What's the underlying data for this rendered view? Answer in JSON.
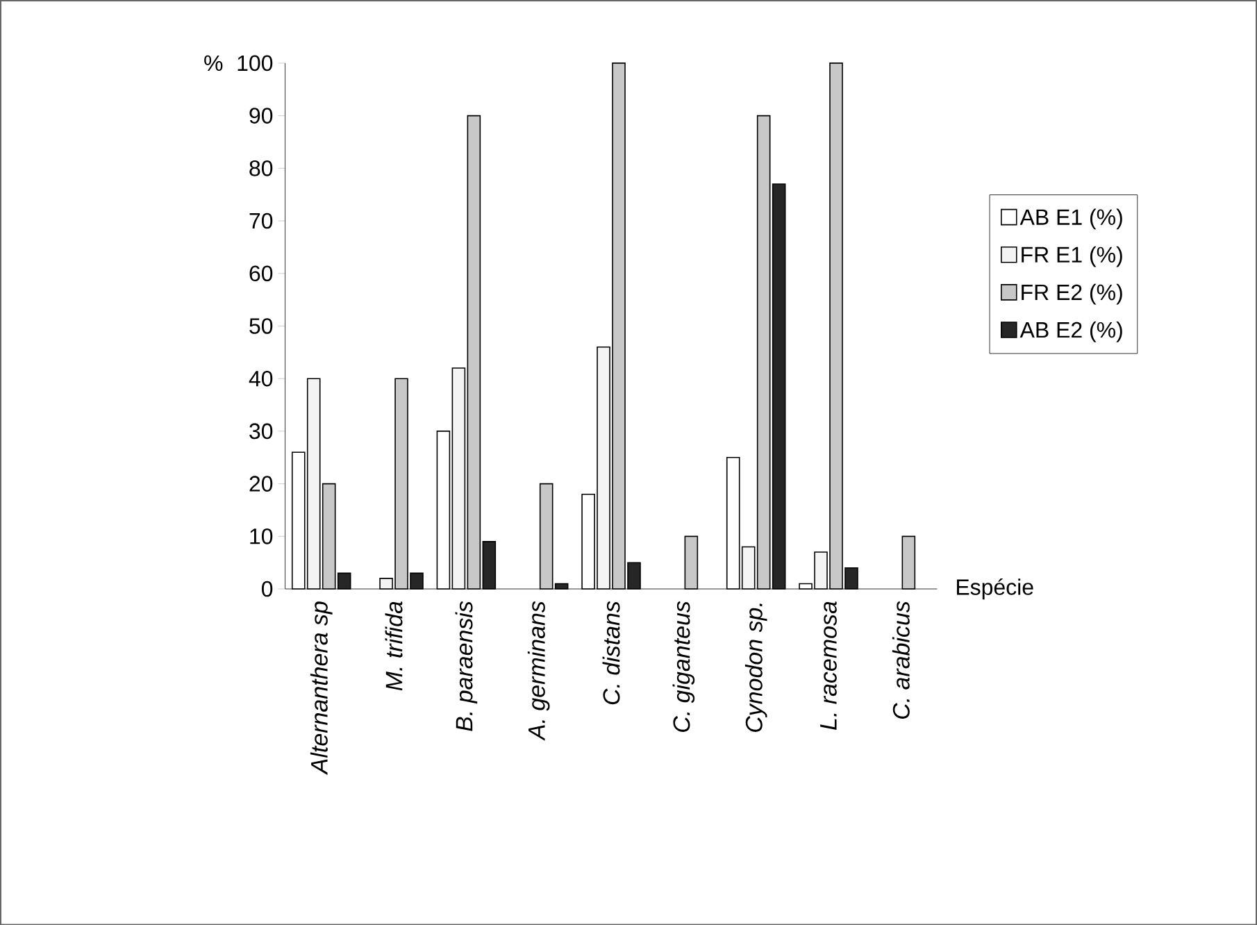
{
  "chart_data": {
    "type": "bar",
    "xlabel": "Espécie",
    "ylabel": "%",
    "categories": [
      "Alternanthera sp",
      "M. trifida",
      "B. paraensis",
      "A. germinans",
      "C. distans",
      "C. giganteus",
      "Cynodon sp.",
      "L. racemosa",
      "C. arabicus"
    ],
    "series": [
      {
        "name": "AB E1 (%)",
        "color": "#ffffff",
        "values": [
          26,
          0,
          30,
          0,
          18,
          0,
          25,
          1,
          0
        ]
      },
      {
        "name": "FR E1 (%)",
        "color": "#f4f4f4",
        "values": [
          40,
          2,
          42,
          0,
          46,
          0,
          8,
          7,
          0
        ]
      },
      {
        "name": "FR E2 (%)",
        "color": "#c8c8c8",
        "values": [
          20,
          40,
          90,
          20,
          100,
          10,
          90,
          100,
          10
        ]
      },
      {
        "name": "AB E2 (%)",
        "color": "#262626",
        "values": [
          3,
          3,
          9,
          1,
          5,
          0,
          77,
          4,
          0
        ]
      }
    ],
    "ylim": [
      0,
      100
    ],
    "yticks": [
      0,
      10,
      20,
      30,
      40,
      50,
      60,
      70,
      80,
      90,
      100
    ],
    "legend": "right"
  }
}
